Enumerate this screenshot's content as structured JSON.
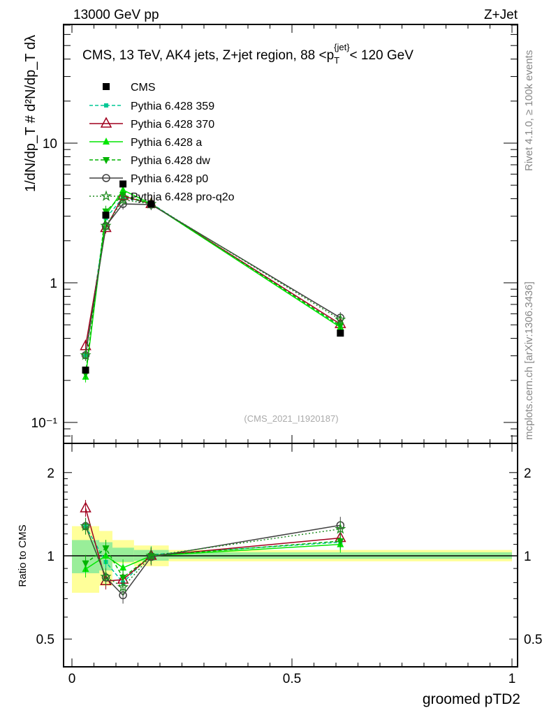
{
  "header": {
    "left": "13000 GeV pp",
    "right": "Z+Jet"
  },
  "side_text": {
    "rivet": "Rivet 4.1.0, ≥ 100k events",
    "site": "mcplots.cern.ch [arXiv:1306.3436]"
  },
  "chart_data": {
    "type": "line",
    "title": "CMS, 13 TeV, AK4 jets, Z+jet region, 88 <p_T^{jet}< 120 GeV",
    "title_parts": {
      "main": "CMS, 13 TeV, AK4 jets, Z+jet region, 88 <p",
      "sub": "T",
      "sup": "{jet}",
      "tail": "< 120 GeV"
    },
    "watermark": "(CMS_2021_I1920187)",
    "xlabel": "groomed pTD2",
    "ylabel": "1/dN/dp_T # d²N/dp_T dλ",
    "ratio_ylabel": "Ratio to CMS",
    "xlim": [
      0,
      1
    ],
    "ylim": [
      0.08,
      70
    ],
    "yscale": "log",
    "ratio_ylim": [
      0.42,
      2.35
    ],
    "x_ticks": [
      "0",
      "0.5",
      "1"
    ],
    "y_ticks": [
      "10",
      "1",
      "10⁻¹"
    ],
    "ratio_ticks": [
      "2",
      "1",
      "0.5"
    ],
    "bin_edges": [
      0,
      0.062,
      0.092,
      0.141,
      0.22,
      1.0
    ],
    "x": [
      0.031,
      0.077,
      0.116,
      0.18,
      0.61
    ],
    "data": {
      "name": "CMS",
      "values": [
        0.237,
        3.05,
        5.1,
        3.67,
        0.436
      ],
      "band_inner": [
        [
          0.865,
          1.14
        ],
        [
          0.885,
          1.12
        ],
        [
          0.95,
          1.07
        ],
        [
          0.96,
          1.05
        ],
        [
          0.975,
          1.03
        ]
      ],
      "band_outer": [
        [
          0.735,
          1.28
        ],
        [
          0.78,
          1.23
        ],
        [
          0.94,
          1.14
        ],
        [
          0.917,
          1.09
        ],
        [
          0.955,
          1.05
        ]
      ]
    },
    "series": [
      {
        "name": "Pythia 6.428 359",
        "color": "#00c896",
        "dash": "5,3",
        "marker": "square-small",
        "values": [
          0.303,
          2.9,
          4.08,
          3.71,
          0.488
        ],
        "ratio": [
          1.28,
          0.95,
          0.8,
          1.01,
          1.12
        ]
      },
      {
        "name": "Pythia 6.428 370",
        "color": "#a0001e",
        "dash": "",
        "marker": "triangle-open",
        "values": [
          0.352,
          2.47,
          4.18,
          3.67,
          0.506
        ],
        "ratio": [
          1.485,
          0.81,
          0.82,
          1.0,
          1.16
        ]
      },
      {
        "name": "Pythia 6.428 a",
        "color": "#00e600",
        "dash": "",
        "marker": "triangle-up",
        "values": [
          0.212,
          3.05,
          4.62,
          3.67,
          0.48
        ],
        "ratio": [
          0.895,
          1.0,
          0.905,
          1.0,
          1.1
        ]
      },
      {
        "name": "Pythia 6.428 dw",
        "color": "#00b400",
        "dash": "5,3",
        "marker": "triangle-down",
        "values": [
          0.223,
          3.25,
          4.26,
          3.67,
          0.493
        ],
        "ratio": [
          0.94,
          1.065,
          0.835,
          1.0,
          1.13
        ]
      },
      {
        "name": "Pythia 6.428 p0",
        "color": "#404040",
        "dash": "",
        "marker": "circle-open",
        "values": [
          0.303,
          2.55,
          3.67,
          3.63,
          0.562
        ],
        "ratio": [
          1.28,
          0.835,
          0.72,
          0.99,
          1.29
        ]
      },
      {
        "name": "Pythia 6.428 pro-q2o",
        "color": "#1e8c1e",
        "dash": "2,3",
        "marker": "star-open",
        "values": [
          0.303,
          2.56,
          3.93,
          3.67,
          0.545
        ],
        "ratio": [
          1.28,
          0.84,
          0.77,
          1.0,
          1.25
        ]
      }
    ]
  }
}
